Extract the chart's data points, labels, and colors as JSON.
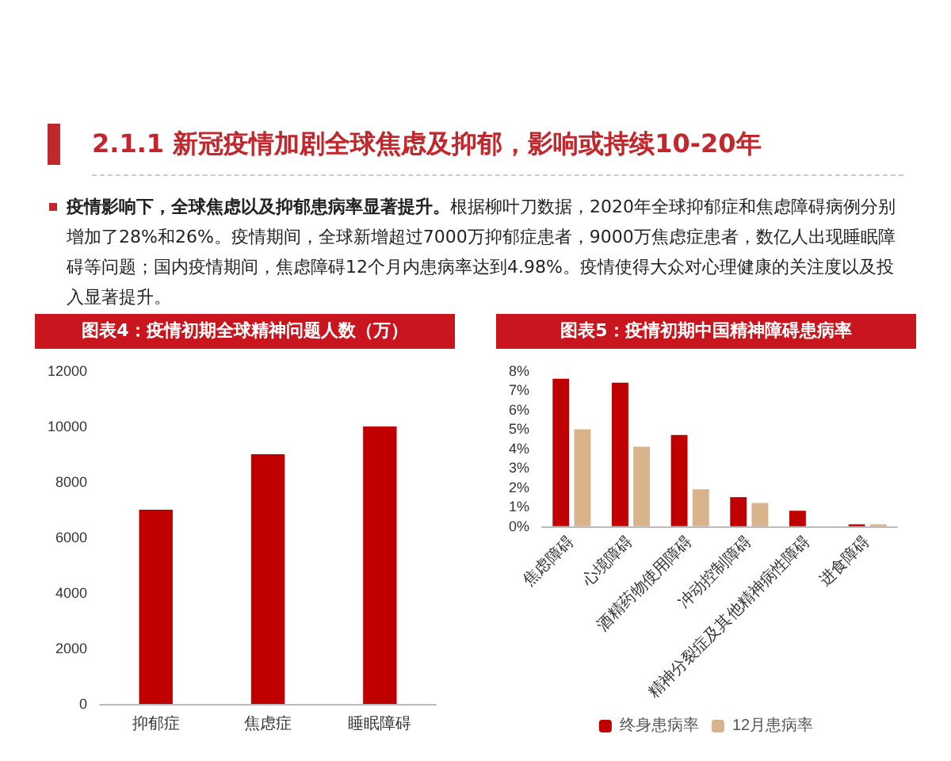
{
  "chart_data": [
    {
      "type": "other",
      "title": "2.1.1 新冠疫情加剧全球焦虑及抑郁，影响或持续10-20年",
      "annotations": [
        "疫情影响下，全球焦虑以及抑郁患病率显著提升。",
        "根据柳叶刀数据，2020年全球抑郁症和焦虑障碍病例分别增加了28%和26%。疫情期间，全球新增超过7000万抑郁症患者，9000万焦虑症患者，数亿人出现睡眠障碍等问题；国内疫情期间，焦虑障碍12个月内患病率达到4.98%。疫情使得大众对心理健康的关注度以及投入显著提升。"
      ]
    },
    {
      "type": "bar",
      "title": "图表4：疫情初期全球精神问题人数（万）",
      "categories": [
        "抑郁症",
        "焦虑症",
        "睡眠障碍"
      ],
      "values": [
        7000,
        9000,
        10000
      ],
      "color": "#c00000",
      "ylim": [
        0,
        12000
      ],
      "yticks": [
        0,
        2000,
        4000,
        6000,
        8000,
        10000,
        12000
      ]
    },
    {
      "type": "bar",
      "title": "图表5：疫情初期中国精神障碍患病率",
      "categories": [
        "焦虑障碍",
        "心境障碍",
        "酒精药物使用障碍",
        "冲动控制障碍",
        "精神分裂症及其他精神病性障碍",
        "进食障碍"
      ],
      "series": [
        {
          "name": "终身患病率",
          "color": "#c00000",
          "values": [
            7.6,
            7.4,
            4.7,
            1.5,
            0.8,
            0.1
          ]
        },
        {
          "name": "12月患病率",
          "color": "#d9b38c",
          "values": [
            5.0,
            4.1,
            1.9,
            1.2,
            null,
            0.1
          ]
        }
      ],
      "ylim": [
        0,
        8
      ],
      "yticks": [
        {
          "value": 0,
          "label": "0%"
        },
        {
          "value": 1,
          "label": "1%"
        },
        {
          "value": 2,
          "label": "2%"
        },
        {
          "value": 3,
          "label": "3%"
        },
        {
          "value": 4,
          "label": "4%"
        },
        {
          "value": 5,
          "label": "5%"
        },
        {
          "value": 6,
          "label": "6%"
        },
        {
          "value": 7,
          "label": "7%"
        },
        {
          "value": 8,
          "label": "8%"
        }
      ],
      "legend": "bottom"
    }
  ]
}
